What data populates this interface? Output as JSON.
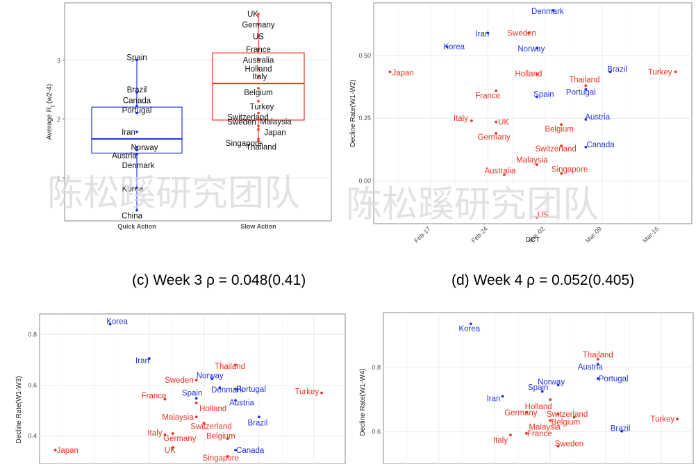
{
  "colors": {
    "quick": "#2233dd",
    "slow": "#ee3322"
  },
  "watermark": "陈松蹊研究团队",
  "captions": {
    "c": "(c) Week 3 ρ = 0.048(0.41)",
    "d": "(d) Week 4 ρ = 0.052(0.405)"
  },
  "chart_data": [
    {
      "id": "boxplot",
      "type": "box",
      "ylabel": "Average R",
      "ylabel_sub": "t",
      "ylabel_suffix": " (w2-4)",
      "categories": [
        "Quick Action",
        "Slow Action"
      ],
      "ylim": [
        0.27,
        3.97
      ],
      "yticks": [
        1,
        2,
        3
      ],
      "boxes": [
        {
          "group": "Quick Action",
          "q1": 1.42,
          "median": 1.66,
          "q3": 2.2,
          "whisker_low": 0.45,
          "whisker_high": 3.0
        },
        {
          "group": "Slow Action",
          "q1": 1.98,
          "median": 2.6,
          "q3": 3.12,
          "whisker_low": 1.62,
          "whisker_high": 3.78
        }
      ],
      "points": [
        {
          "label": "Spain",
          "group": "Quick Action",
          "y": 3.0
        },
        {
          "label": "Brazil",
          "group": "Quick Action",
          "y": 2.45
        },
        {
          "label": "Canada",
          "group": "Quick Action",
          "y": 2.22
        },
        {
          "label": "Portugal",
          "group": "Quick Action",
          "y": 2.1
        },
        {
          "label": "Iran",
          "group": "Quick Action",
          "y": 1.78
        },
        {
          "label": "Norway",
          "group": "Quick Action",
          "y": 1.52
        },
        {
          "label": "Austria",
          "group": "Quick Action",
          "y": 1.47
        },
        {
          "label": "Denmark",
          "group": "Quick Action",
          "y": 1.4
        },
        {
          "label": "Korea",
          "group": "Quick Action",
          "y": 0.82
        },
        {
          "label": "China",
          "group": "Quick Action",
          "y": 0.45
        },
        {
          "label": "UK",
          "group": "Slow Action",
          "y": 3.78
        },
        {
          "label": "Germany",
          "group": "Slow Action",
          "y": 3.6
        },
        {
          "label": "US",
          "group": "Slow Action",
          "y": 3.4
        },
        {
          "label": "France",
          "group": "Slow Action",
          "y": 3.18
        },
        {
          "label": "Australia",
          "group": "Slow Action",
          "y": 3.0
        },
        {
          "label": "Holland",
          "group": "Slow Action",
          "y": 2.85
        },
        {
          "label": "Italy",
          "group": "Slow Action",
          "y": 2.72
        },
        {
          "label": "Belgium",
          "group": "Slow Action",
          "y": 2.52
        },
        {
          "label": "Turkey",
          "group": "Slow Action",
          "y": 2.3
        },
        {
          "label": "Switzerland",
          "group": "Slow Action",
          "y": 2.1
        },
        {
          "label": "Malaysia",
          "group": "Slow Action",
          "y": 2.0
        },
        {
          "label": "Sweden",
          "group": "Slow Action",
          "y": 1.88
        },
        {
          "label": "Japan",
          "group": "Slow Action",
          "y": 1.82
        },
        {
          "label": "Singapore",
          "group": "Slow Action",
          "y": 1.66
        },
        {
          "label": "Thailand",
          "group": "Slow Action",
          "y": 1.62
        }
      ]
    },
    {
      "id": "w2",
      "type": "scatter",
      "xlabel": "DCT",
      "ylabel": "Decline Rate(W1-W2)",
      "xticks": [
        "Feb-17",
        "Feb-24",
        "Mar-02",
        "Mar-09",
        "Mar-16"
      ],
      "xlim": [
        "2020-02-10",
        "2020-03-20"
      ],
      "ylim": [
        -0.17,
        0.71
      ],
      "yticks": [
        0.0,
        0.25,
        0.5
      ],
      "ytick_labels": [
        "0.00",
        "0.25",
        "0.50"
      ],
      "points": [
        {
          "label": "Denmark",
          "group": "quick",
          "x": "2020-03-03",
          "y": 0.68
        },
        {
          "label": "Korea",
          "group": "quick",
          "x": "2020-02-19",
          "y": 0.535
        },
        {
          "label": "Iran",
          "group": "quick",
          "x": "2020-02-24",
          "y": 0.59
        },
        {
          "label": "Sweden",
          "group": "slow",
          "x": "2020-02-29",
          "y": 0.59
        },
        {
          "label": "Norway",
          "group": "quick",
          "x": "2020-03-01",
          "y": 0.53
        },
        {
          "label": "Japan",
          "group": "slow",
          "x": "2020-02-12",
          "y": 0.435
        },
        {
          "label": "Holland",
          "group": "slow",
          "x": "2020-03-01",
          "y": 0.425
        },
        {
          "label": "Brazil",
          "group": "quick",
          "x": "2020-03-10",
          "y": 0.435
        },
        {
          "label": "Turkey",
          "group": "slow",
          "x": "2020-03-18",
          "y": 0.435
        },
        {
          "label": "Thailand",
          "group": "slow",
          "x": "2020-03-07",
          "y": 0.38
        },
        {
          "label": "Portugal",
          "group": "quick",
          "x": "2020-03-07",
          "y": 0.365
        },
        {
          "label": "France",
          "group": "slow",
          "x": "2020-02-25",
          "y": 0.36
        },
        {
          "label": "Spain",
          "group": "quick",
          "x": "2020-03-01",
          "y": 0.335
        },
        {
          "label": "Austria",
          "group": "quick",
          "x": "2020-03-07",
          "y": 0.245
        },
        {
          "label": "Italy",
          "group": "slow",
          "x": "2020-02-22",
          "y": 0.24
        },
        {
          "label": "UK",
          "group": "slow",
          "x": "2020-02-25",
          "y": 0.235
        },
        {
          "label": "Belgium",
          "group": "slow",
          "x": "2020-03-04",
          "y": 0.225
        },
        {
          "label": "Germany",
          "group": "slow",
          "x": "2020-02-25",
          "y": 0.19
        },
        {
          "label": "Canada",
          "group": "quick",
          "x": "2020-03-07",
          "y": 0.135
        },
        {
          "label": "Switzerland",
          "group": "slow",
          "x": "2020-03-04",
          "y": 0.14
        },
        {
          "label": "Malaysia",
          "group": "slow",
          "x": "2020-03-01",
          "y": 0.065
        },
        {
          "label": "Australia",
          "group": "slow",
          "x": "2020-02-26",
          "y": 0.025
        },
        {
          "label": "Singapore",
          "group": "slow",
          "x": "2020-03-04",
          "y": 0.03
        },
        {
          "label": "US",
          "group": "slow",
          "x": "2020-03-01",
          "y": -0.145
        }
      ]
    },
    {
      "id": "w3",
      "type": "scatter",
      "ylabel": "Decline Rate(W1-W3)",
      "xlim": [
        "2020-02-10",
        "2020-03-20"
      ],
      "ylim": [
        0.29,
        0.88
      ],
      "yticks": [
        0.4,
        0.6,
        0.8
      ],
      "ytick_labels": [
        "0.4",
        "0.6",
        "0.8"
      ],
      "points": [
        {
          "label": "Korea",
          "group": "quick",
          "x": "2020-02-19",
          "y": 0.84
        },
        {
          "label": "Iran",
          "group": "quick",
          "x": "2020-02-24",
          "y": 0.705
        },
        {
          "label": "Thailand",
          "group": "slow",
          "x": "2020-03-06",
          "y": 0.68
        },
        {
          "label": "Norway",
          "group": "quick",
          "x": "2020-03-03",
          "y": 0.625
        },
        {
          "label": "Sweden",
          "group": "slow",
          "x": "2020-03-01",
          "y": 0.62
        },
        {
          "label": "Denmark",
          "group": "quick",
          "x": "2020-03-04",
          "y": 0.59
        },
        {
          "label": "Portugal",
          "group": "quick",
          "x": "2020-03-06",
          "y": 0.585
        },
        {
          "label": "Turkey",
          "group": "slow",
          "x": "2020-03-17",
          "y": 0.57
        },
        {
          "label": "France",
          "group": "slow",
          "x": "2020-02-26",
          "y": 0.545
        },
        {
          "label": "Spain",
          "group": "quick",
          "x": "2020-03-01",
          "y": 0.548
        },
        {
          "label": "Austria",
          "group": "quick",
          "x": "2020-03-06",
          "y": 0.54
        },
        {
          "label": "Holland",
          "group": "slow",
          "x": "2020-03-01",
          "y": 0.53
        },
        {
          "label": "Brazil",
          "group": "quick",
          "x": "2020-03-09",
          "y": 0.475
        },
        {
          "label": "Malaysia",
          "group": "slow",
          "x": "2020-03-01",
          "y": 0.475
        },
        {
          "label": "Switzerland",
          "group": "slow",
          "x": "2020-03-02",
          "y": 0.45
        },
        {
          "label": "Italy",
          "group": "slow",
          "x": "2020-02-26",
          "y": 0.405
        },
        {
          "label": "Germany",
          "group": "slow",
          "x": "2020-02-27",
          "y": 0.41
        },
        {
          "label": "Belgium",
          "group": "slow",
          "x": "2020-03-05",
          "y": 0.39
        },
        {
          "label": "Japan",
          "group": "slow",
          "x": "2020-02-12",
          "y": 0.345
        },
        {
          "label": "UK",
          "group": "slow",
          "x": "2020-02-27",
          "y": 0.355
        },
        {
          "label": "Canada",
          "group": "quick",
          "x": "2020-03-06",
          "y": 0.345
        },
        {
          "label": "Singapore",
          "group": "slow",
          "x": "2020-03-05",
          "y": 0.32
        }
      ]
    },
    {
      "id": "w4",
      "type": "scatter",
      "ylabel": "Decline Rate(W1-W4)",
      "xlim": [
        "2020-02-10",
        "2020-03-20"
      ],
      "ylim": [
        0.5,
        0.97
      ],
      "yticks": [
        0.6,
        0.8
      ],
      "ytick_labels": [
        "0.6",
        "0.8"
      ],
      "points": [
        {
          "label": "Korea",
          "group": "quick",
          "x": "2020-02-21",
          "y": 0.935
        },
        {
          "label": "Thailand",
          "group": "slow",
          "x": "2020-03-08",
          "y": 0.825
        },
        {
          "label": "Austria",
          "group": "quick",
          "x": "2020-03-08",
          "y": 0.81
        },
        {
          "label": "Portugal",
          "group": "quick",
          "x": "2020-03-08",
          "y": 0.765
        },
        {
          "label": "Norway",
          "group": "quick",
          "x": "2020-03-03",
          "y": 0.745
        },
        {
          "label": "Spain",
          "group": "quick",
          "x": "2020-03-01",
          "y": 0.725
        },
        {
          "label": "Iran",
          "group": "quick",
          "x": "2020-02-25",
          "y": 0.71
        },
        {
          "label": "Holland",
          "group": "slow",
          "x": "2020-03-02",
          "y": 0.7
        },
        {
          "label": "Germany",
          "group": "slow",
          "x": "2020-02-28",
          "y": 0.66
        },
        {
          "label": "Switzerland",
          "group": "slow",
          "x": "2020-03-03",
          "y": 0.655
        },
        {
          "label": "Belgium",
          "group": "slow",
          "x": "2020-03-05",
          "y": 0.645
        },
        {
          "label": "Malaysia",
          "group": "slow",
          "x": "2020-03-02",
          "y": 0.635
        },
        {
          "label": "Turkey",
          "group": "slow",
          "x": "2020-03-18",
          "y": 0.64
        },
        {
          "label": "Brazil",
          "group": "quick",
          "x": "2020-03-11",
          "y": 0.602
        },
        {
          "label": "France",
          "group": "slow",
          "x": "2020-02-28",
          "y": 0.595
        },
        {
          "label": "Italy",
          "group": "slow",
          "x": "2020-02-26",
          "y": 0.59
        },
        {
          "label": "Sweden",
          "group": "slow",
          "x": "2020-03-03",
          "y": 0.555
        }
      ]
    }
  ]
}
